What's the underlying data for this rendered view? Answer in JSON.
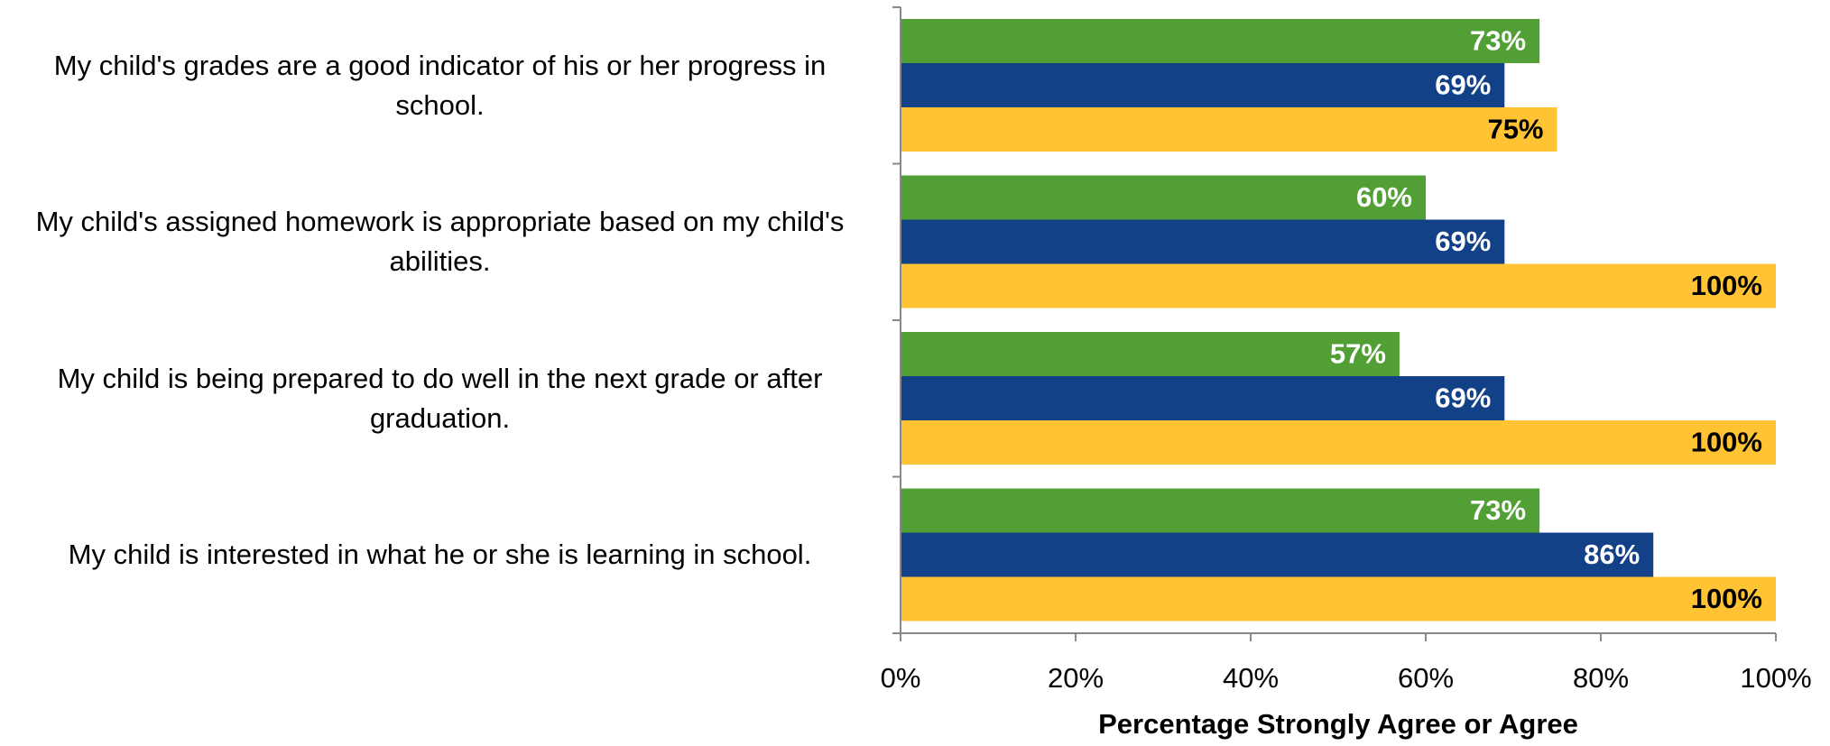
{
  "chart_data": {
    "type": "bar",
    "orientation": "horizontal",
    "x_label": "Percentage Strongly Agree or Agree",
    "categories": [
      "My child's grades are a good indicator of his or her progress in school.",
      "My child's assigned homework is appropriate based on my child's abilities.",
      "My child is being prepared to do well in the next grade or after graduation.",
      "My child is interested in what he or she is learning in school."
    ],
    "series": [
      {
        "color": "#52a035",
        "label_color": "#ffffff",
        "values": [
          73,
          60,
          57,
          73
        ],
        "value_labels": [
          "73%",
          "60%",
          "57%",
          "73%"
        ]
      },
      {
        "color": "#124188",
        "label_color": "#ffffff",
        "values": [
          69,
          69,
          69,
          86
        ],
        "value_labels": [
          "69%",
          "69%",
          "69%",
          "86%"
        ]
      },
      {
        "color": "#ffc333",
        "label_color": "#000000",
        "values": [
          75,
          100,
          100,
          100
        ],
        "value_labels": [
          "75%",
          "100%",
          "100%",
          "100%"
        ]
      }
    ],
    "xlim": [
      0,
      100
    ],
    "xticks": [
      {
        "value": 0,
        "label": "0%"
      },
      {
        "value": 20,
        "label": "20%"
      },
      {
        "value": 40,
        "label": "40%"
      },
      {
        "value": 60,
        "label": "60%"
      },
      {
        "value": 80,
        "label": "80%"
      },
      {
        "value": 100,
        "label": "100%"
      }
    ]
  }
}
